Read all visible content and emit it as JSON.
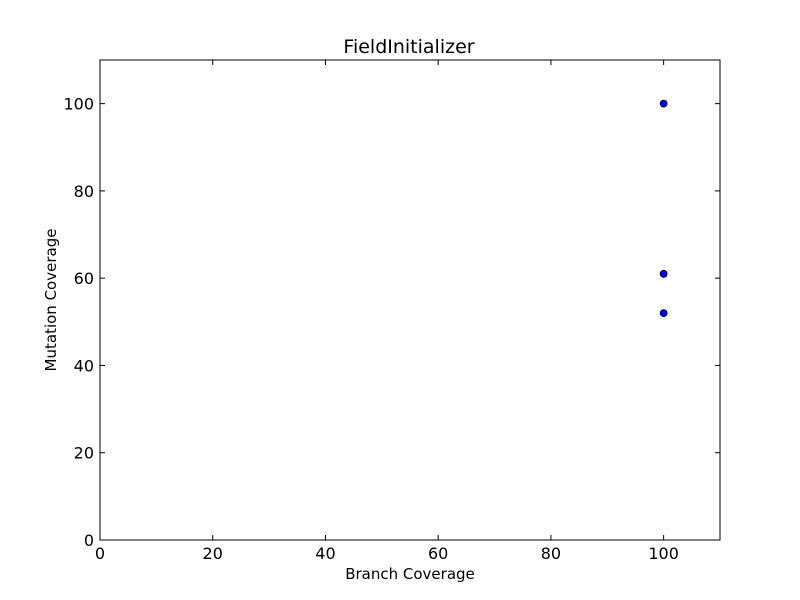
{
  "chart_data": {
    "type": "scatter",
    "title": "FieldInitializer",
    "xlabel": "Branch Coverage",
    "ylabel": "Mutation Coverage",
    "xlim": [
      0,
      110
    ],
    "ylim": [
      0,
      110
    ],
    "xticks": [
      0,
      20,
      40,
      60,
      80,
      100
    ],
    "yticks": [
      0,
      20,
      40,
      60,
      80,
      100
    ],
    "grid": false,
    "series": [
      {
        "color": "#0000ff",
        "points": [
          {
            "x": 100,
            "y": 100
          },
          {
            "x": 100,
            "y": 61
          },
          {
            "x": 100,
            "y": 52
          }
        ]
      }
    ]
  }
}
